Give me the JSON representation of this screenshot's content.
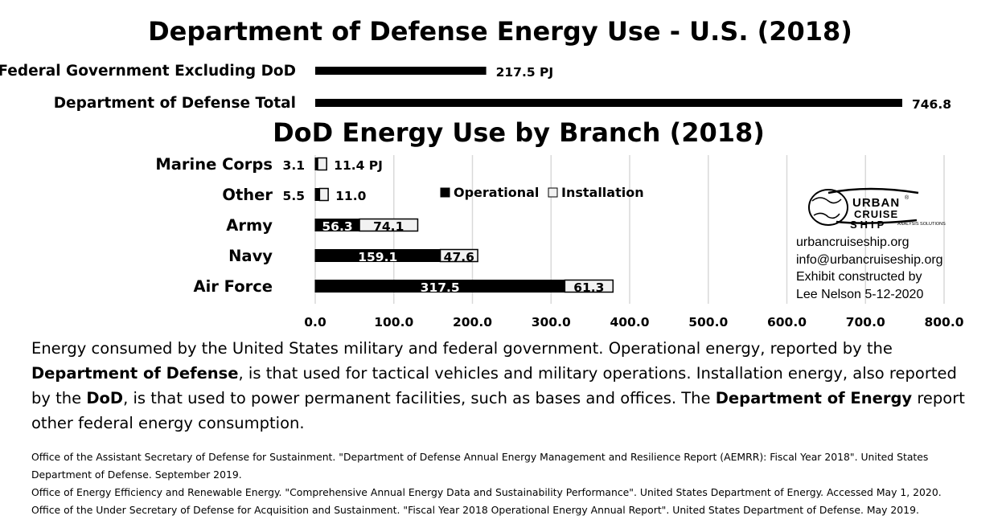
{
  "chart_data": [
    {
      "type": "bar",
      "orientation": "horizontal",
      "title": "Department of Defense Energy Use - U.S. (2018)",
      "categories": [
        "Federal Government Excluding DoD",
        "Department of Defense Total"
      ],
      "values": [
        217.5,
        746.8
      ],
      "value_labels": [
        "217.5  PJ",
        "746.8"
      ],
      "color": "#000000",
      "xlim": [
        0,
        800
      ]
    },
    {
      "type": "bar",
      "orientation": "horizontal",
      "stacked": true,
      "title": "DoD Energy Use by Branch (2018)",
      "categories": [
        "Marine Corps",
        "Other",
        "Army",
        "Navy",
        "Air Force"
      ],
      "series": [
        {
          "name": "Operational",
          "values": [
            3.1,
            5.5,
            56.3,
            159.1,
            317.5
          ],
          "color": "#000000"
        },
        {
          "name": "Installation",
          "values": [
            11.4,
            11.0,
            74.1,
            47.6,
            61.3
          ],
          "color": "#f2f2f2"
        }
      ],
      "installation_labels": [
        "11.4  PJ",
        "11.0",
        "74.1",
        "47.6",
        "61.3"
      ],
      "xlim": [
        0,
        800
      ],
      "xticks": [
        0,
        100,
        200,
        300,
        400,
        500,
        600,
        700,
        800
      ],
      "xtick_labels": [
        "0.0",
        "100.0",
        "200.0",
        "300.0",
        "400.0",
        "500.0",
        "600.0",
        "700.0",
        "800.0"
      ],
      "grid": true,
      "legend_position": "top-center"
    }
  ],
  "logo": {
    "line1": "URBAN",
    "line2": "CRUISE",
    "line3": "SHIP",
    "sub": "ANALYSIS SOLUTIONS",
    "reg": "®"
  },
  "credits": {
    "website": "urbancruiseship.org",
    "email": "info@urbancruiseship.org",
    "line3": "Exhibit constructed by",
    "line4": "Lee Nelson 5-12-2020"
  },
  "description": {
    "p1": "Energy consumed by the United States military and federal government. Operational energy, reported by the ",
    "b1": "Department of Defense",
    "p2": ", is that used for tactical vehicles and military operations. Installation energy, also reported by the ",
    "b2": "DoD",
    "p3": ", is that used to power permanent facilities, such as bases and offices. The ",
    "b3": "Department of Energy",
    "p4": " report other federal energy consumption."
  },
  "sources": [
    "Office of the Assistant Secretary of Defense for Sustainment. \"Department of Defense Annual Energy Management and Resilience Report (AEMRR): Fiscal Year 2018\". United States Department of Defense. September 2019.",
    "Office of Energy Efficiency and Renewable Energy. \"Comprehensive Annual Energy Data and Sustainability Performance\". United States Department of Energy. Accessed May 1, 2020.",
    "Office of the Under Secretary of Defense for Acquisition and Sustainment. \"Fiscal Year 2018 Operational Energy Annual Report\". United States Department of Defense. May 2019."
  ]
}
